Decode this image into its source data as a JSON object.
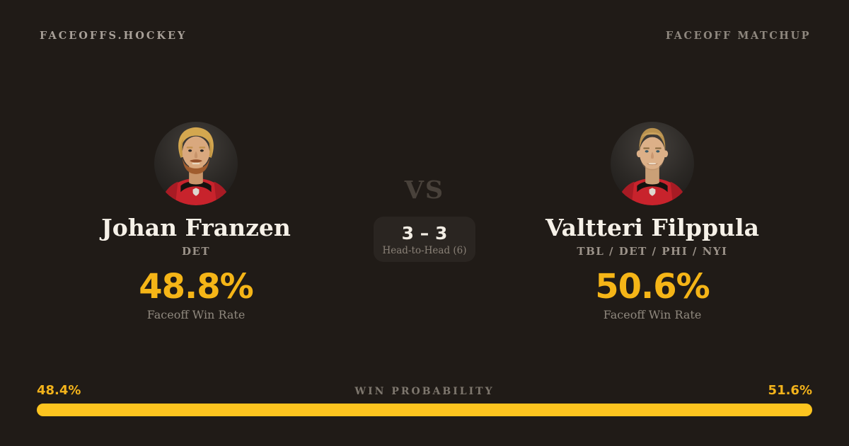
{
  "brand": "FACEOFFS.HOCKEY",
  "page_label": "FACEOFF MATCHUP",
  "matchup": {
    "vs_label": "VS",
    "head_to_head_score": "3 – 3",
    "head_to_head_label": "Head-to-Head (6)"
  },
  "players": {
    "left": {
      "name": "Johan Franzen",
      "teams": "DET",
      "faceoff_win_rate": "48.8%",
      "rate_label": "Faceoff Win Rate"
    },
    "right": {
      "name": "Valtteri Filppula",
      "teams": "TBL / DET / PHI / NYI",
      "faceoff_win_rate": "50.6%",
      "rate_label": "Faceoff Win Rate"
    }
  },
  "win_probability": {
    "label": "WIN PROBABILITY",
    "left_value": "48.4%",
    "right_value": "51.6%",
    "left_pct": 48.4,
    "right_pct": 51.6
  },
  "colors": {
    "background": "#201b17",
    "accent_gold": "#f5b517",
    "bar_gold": "#fcc41f",
    "badge_bg": "#2a2521",
    "name_white": "#f6f1e8",
    "muted_gray": "#8f887e",
    "jersey_red": "#c8232c"
  }
}
